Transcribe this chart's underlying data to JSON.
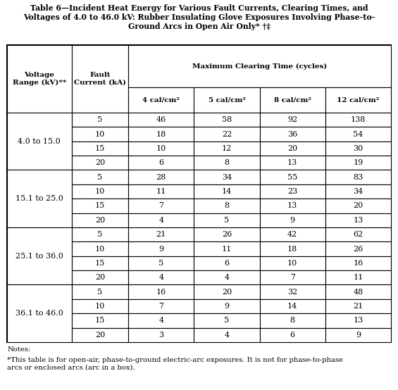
{
  "title_line1": "Table 6—Incident Heat Energy for Various Fault Currents, Clearing Times, and",
  "title_line2": "Voltages of 4.0 to 46.0 kV: Rubber Insulating Glove Exposures Involving Phase-to-",
  "title_line3": "Ground Arcs in Open Air Only* †‡",
  "col_headers_row1_left": "Voltage\nRange (kV)**",
  "col_headers_row1_mid": "Fault\nCurrent (kA)",
  "col_headers_row1_right": "Maximum Clearing Time (cycles)",
  "col_headers_row2": [
    "4 cal/cm²",
    "5 cal/cm²",
    "8 cal/cm²",
    "12 cal/cm²"
  ],
  "voltage_ranges": [
    "4.0 to 15.0",
    "15.1 to 25.0",
    "25.1 to 36.0",
    "36.1 to 46.0"
  ],
  "fault_currents": [
    5,
    10,
    15,
    20
  ],
  "data": [
    [
      [
        46,
        58,
        92,
        138
      ],
      [
        18,
        22,
        36,
        54
      ],
      [
        10,
        12,
        20,
        30
      ],
      [
        6,
        8,
        13,
        19
      ]
    ],
    [
      [
        28,
        34,
        55,
        83
      ],
      [
        11,
        14,
        23,
        34
      ],
      [
        7,
        8,
        13,
        20
      ],
      [
        4,
        5,
        9,
        13
      ]
    ],
    [
      [
        21,
        26,
        42,
        62
      ],
      [
        9,
        11,
        18,
        26
      ],
      [
        5,
        6,
        10,
        16
      ],
      [
        4,
        4,
        7,
        11
      ]
    ],
    [
      [
        16,
        20,
        32,
        48
      ],
      [
        7,
        9,
        14,
        21
      ],
      [
        4,
        5,
        8,
        13
      ],
      [
        3,
        4,
        6,
        9
      ]
    ]
  ],
  "notes_label": "Notes:",
  "note_star": "*This table is for open-air, phase-to-ground electric-arc exposures. It is not for phase-to-phase\narcs or enclosed arcs (arc in a box).",
  "bg_color": "#ffffff",
  "text_color": "#000000",
  "border_color": "#000000",
  "title_fontsize": 7.8,
  "header_fontsize": 7.5,
  "data_fontsize": 8.0,
  "notes_fontsize": 7.2
}
